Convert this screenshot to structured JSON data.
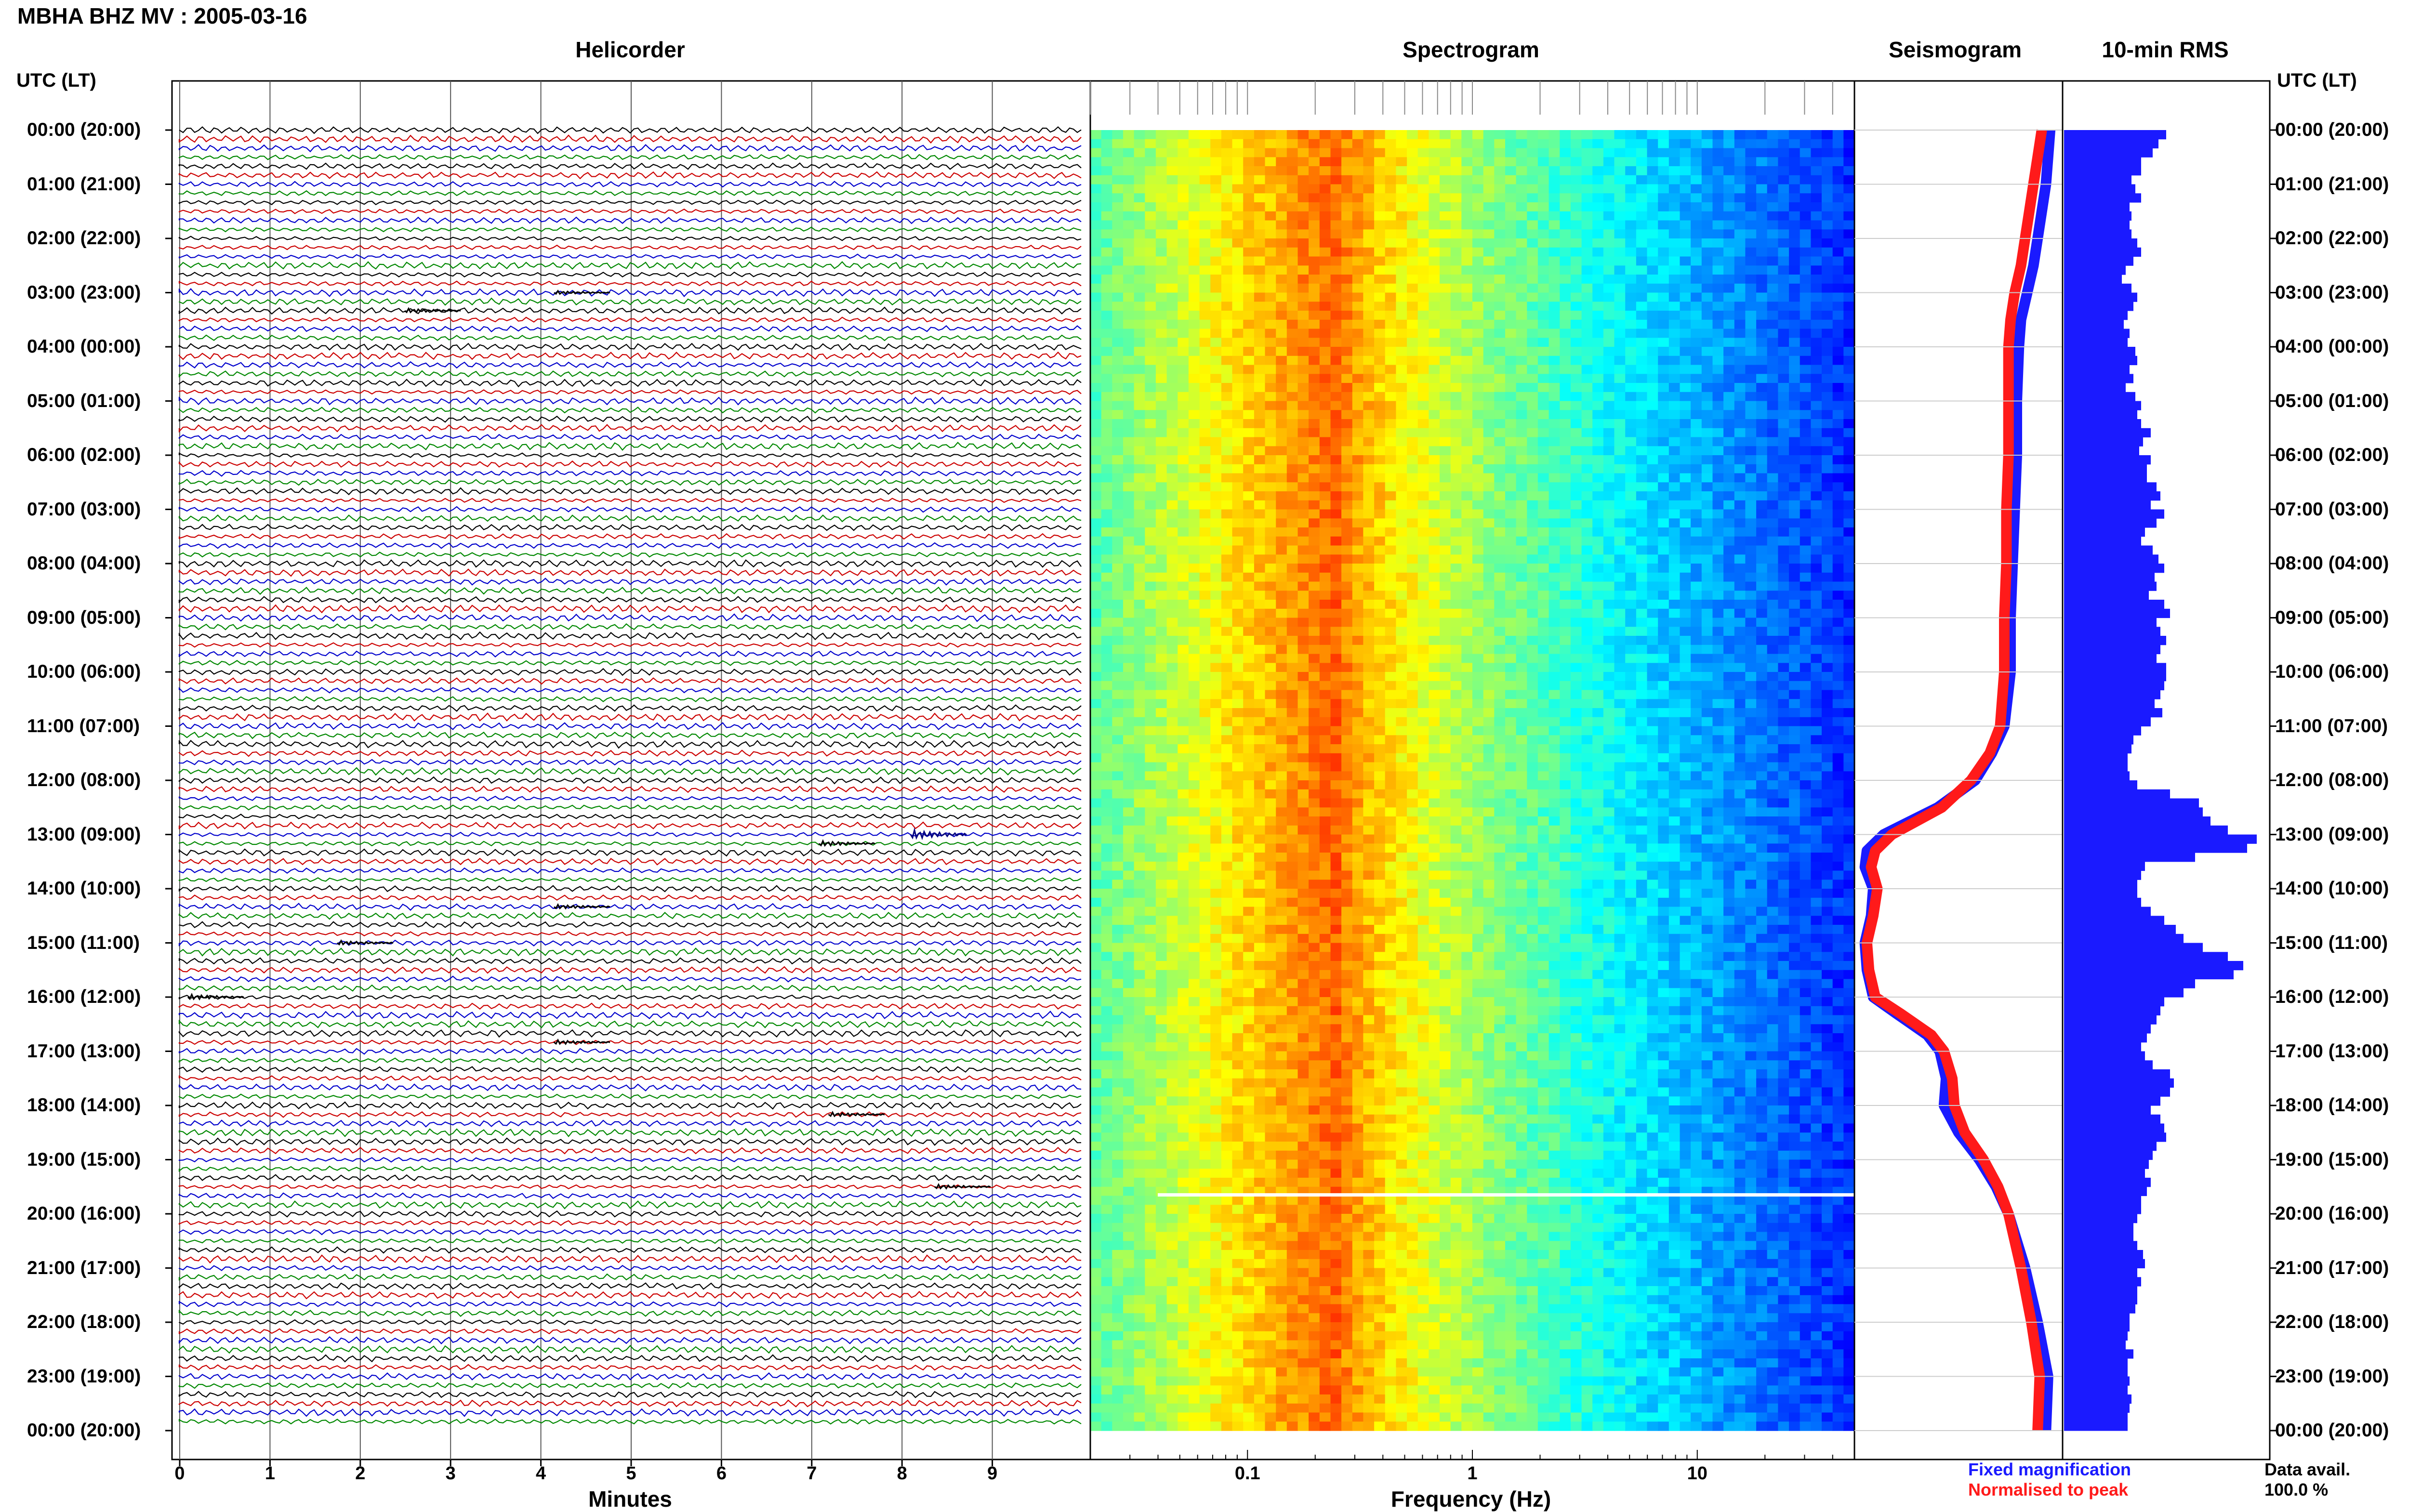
{
  "header": {
    "title": "MBHA BHZ MV : 2005-03-16",
    "helicorder_title": "Helicorder",
    "spectrogram_title": "Spectrogram",
    "seismogram_title": "Seismogram",
    "rms_title": "10-min RMS",
    "utc_label_left": "UTC (LT)",
    "utc_label_right": "UTC (LT)"
  },
  "time_labels": [
    "00:00 (20:00)",
    "01:00 (21:00)",
    "02:00 (22:00)",
    "03:00 (23:00)",
    "04:00 (00:00)",
    "05:00 (01:00)",
    "06:00 (02:00)",
    "07:00 (03:00)",
    "08:00 (04:00)",
    "09:00 (05:00)",
    "10:00 (06:00)",
    "11:00 (07:00)",
    "12:00 (08:00)",
    "13:00 (09:00)",
    "14:00 (10:00)",
    "15:00 (11:00)",
    "16:00 (12:00)",
    "17:00 (13:00)",
    "18:00 (14:00)",
    "19:00 (15:00)",
    "20:00 (16:00)",
    "21:00 (17:00)",
    "22:00 (18:00)",
    "23:00 (19:00)",
    "00:00 (20:00)"
  ],
  "footer": {
    "legend_fixed": "Fixed magnification",
    "legend_normalised": "Normalised to peak",
    "data_avail_label": "Data avail.",
    "data_avail_value": "100.0 %"
  },
  "colors": {
    "fixed": "#1a1aff",
    "normalised": "#ff1a1a",
    "rms_bar": "#1a1aff",
    "trace_colors": [
      "#000000",
      "#cc0000",
      "#0000cc",
      "#008800"
    ]
  },
  "chart_data": [
    {
      "type": "line",
      "name": "helicorder",
      "xlabel": "Minutes",
      "x_ticks": [
        "0",
        "1",
        "2",
        "3",
        "4",
        "5",
        "6",
        "7",
        "8",
        "9"
      ],
      "xlim": [
        0,
        10
      ],
      "lines_per_hour": 6,
      "hours": 24
    },
    {
      "type": "heatmap",
      "name": "spectrogram",
      "xlabel": "Frequency (Hz)",
      "x_scale": "log",
      "x_ticks": [
        "0.1",
        "1",
        "10"
      ],
      "xlim": [
        0.02,
        50
      ],
      "peak_frequency_hz": 0.25,
      "data_gap_at_utc_hour": 19.65
    },
    {
      "type": "line",
      "name": "seismogram",
      "utc_hours": [
        0,
        0.5,
        1,
        1.5,
        2,
        2.5,
        3,
        3.5,
        4,
        5,
        6,
        7,
        8,
        9,
        10,
        11,
        11.5,
        12,
        12.5,
        13,
        13.3,
        13.6,
        14,
        14.5,
        15,
        15.5,
        16,
        16.3,
        16.7,
        17,
        17.5,
        18,
        18.5,
        19,
        19.5,
        20,
        21,
        22,
        23,
        24
      ],
      "series": [
        {
          "name": "Fixed magnification",
          "values": [
            0.94,
            0.93,
            0.92,
            0.9,
            0.88,
            0.86,
            0.83,
            0.8,
            0.79,
            0.78,
            0.78,
            0.77,
            0.76,
            0.75,
            0.75,
            0.72,
            0.66,
            0.58,
            0.4,
            0.14,
            0.06,
            0.05,
            0.09,
            0.08,
            0.05,
            0.06,
            0.09,
            0.2,
            0.35,
            0.41,
            0.44,
            0.43,
            0.5,
            0.6,
            0.68,
            0.74,
            0.82,
            0.88,
            0.93,
            0.92
          ]
        },
        {
          "name": "Normalised to peak",
          "values": [
            0.9,
            0.88,
            0.86,
            0.84,
            0.82,
            0.8,
            0.77,
            0.75,
            0.74,
            0.74,
            0.74,
            0.73,
            0.73,
            0.72,
            0.72,
            0.7,
            0.65,
            0.56,
            0.42,
            0.18,
            0.1,
            0.08,
            0.11,
            0.09,
            0.06,
            0.07,
            0.1,
            0.22,
            0.37,
            0.43,
            0.47,
            0.48,
            0.53,
            0.62,
            0.69,
            0.74,
            0.8,
            0.85,
            0.89,
            0.88
          ]
        }
      ]
    },
    {
      "type": "bar",
      "name": "10-min RMS",
      "orientation": "horizontal",
      "bin_minutes": 10,
      "values": [
        0.53,
        0.49,
        0.46,
        0.4,
        0.4,
        0.35,
        0.37,
        0.4,
        0.34,
        0.35,
        0.34,
        0.35,
        0.38,
        0.4,
        0.36,
        0.32,
        0.3,
        0.35,
        0.38,
        0.36,
        0.33,
        0.31,
        0.34,
        0.33,
        0.37,
        0.38,
        0.34,
        0.36,
        0.32,
        0.37,
        0.4,
        0.38,
        0.4,
        0.45,
        0.41,
        0.39,
        0.45,
        0.43,
        0.43,
        0.48,
        0.5,
        0.45,
        0.52,
        0.48,
        0.42,
        0.4,
        0.46,
        0.49,
        0.52,
        0.47,
        0.48,
        0.44,
        0.52,
        0.55,
        0.48,
        0.5,
        0.53,
        0.5,
        0.48,
        0.53,
        0.53,
        0.52,
        0.5,
        0.47,
        0.51,
        0.45,
        0.4,
        0.36,
        0.35,
        0.33,
        0.33,
        0.34,
        0.38,
        0.55,
        0.7,
        0.72,
        0.76,
        0.85,
        1.0,
        0.95,
        0.68,
        0.42,
        0.4,
        0.38,
        0.38,
        0.4,
        0.45,
        0.52,
        0.58,
        0.62,
        0.72,
        0.85,
        0.93,
        0.88,
        0.68,
        0.62,
        0.52,
        0.5,
        0.48,
        0.45,
        0.43,
        0.4,
        0.42,
        0.46,
        0.55,
        0.57,
        0.55,
        0.5,
        0.45,
        0.5,
        0.52,
        0.53,
        0.48,
        0.46,
        0.44,
        0.42,
        0.45,
        0.43,
        0.4,
        0.4,
        0.38,
        0.36,
        0.36,
        0.38,
        0.41,
        0.42,
        0.38,
        0.4,
        0.38,
        0.38,
        0.37,
        0.34,
        0.34,
        0.33,
        0.32,
        0.36,
        0.33,
        0.33,
        0.34,
        0.33,
        0.35,
        0.34,
        0.33,
        0.33
      ]
    }
  ]
}
